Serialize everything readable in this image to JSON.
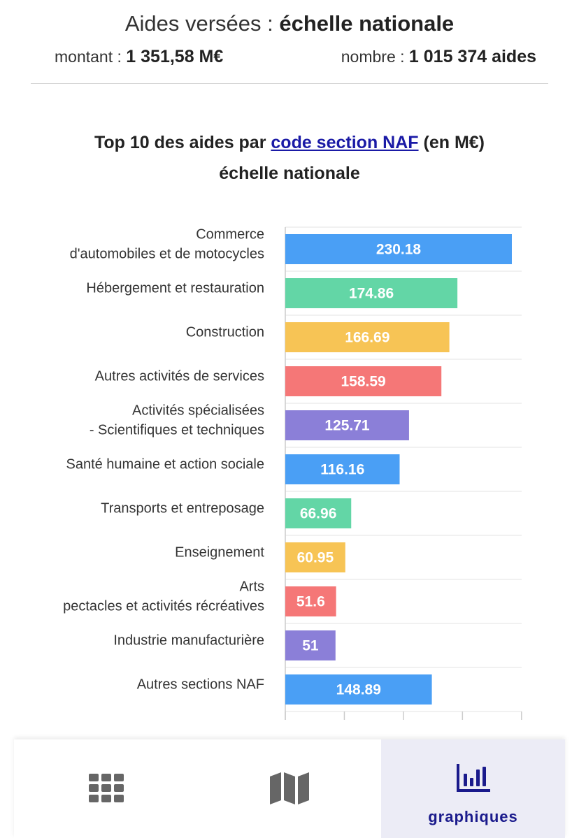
{
  "header": {
    "title_light": "Aides versées : ",
    "title_bold": "échelle nationale",
    "montant_label": "montant : ",
    "montant_value": "1 351,58 M€",
    "nombre_label": "nombre : ",
    "nombre_value": "1 015 374 aides"
  },
  "chart_title": {
    "prefix": "Top 10 des aides par ",
    "link": "code section NAF",
    "suffix": " (en M€)",
    "line2": "échelle nationale"
  },
  "chart_data": {
    "type": "bar",
    "orientation": "horizontal",
    "categories": [
      [
        "Commerce",
        "d'automobiles et de motocycles"
      ],
      [
        "Hébergement et restauration"
      ],
      [
        "Construction"
      ],
      [
        "Autres activités de services"
      ],
      [
        "Activités spécialisées",
        "- Scientifiques et techniques"
      ],
      [
        "Santé humaine et action sociale"
      ],
      [
        "Transports et entreposage"
      ],
      [
        "Enseignement"
      ],
      [
        "Arts",
        "pectacles et activités récréatives"
      ],
      [
        "Industrie manufacturière"
      ],
      [
        "Autres sections NAF"
      ]
    ],
    "values": [
      230.18,
      174.86,
      166.69,
      158.59,
      125.71,
      116.16,
      66.96,
      60.95,
      51.6,
      51,
      148.89
    ],
    "value_labels": [
      "230.18",
      "174.86",
      "166.69",
      "158.59",
      "125.71",
      "116.16",
      "66.96",
      "60.95",
      "51.6",
      "51",
      "148.89"
    ],
    "colors": [
      "#4a9ff5",
      "#63d6a6",
      "#f7c455",
      "#f57777",
      "#8b7fd8",
      "#4a9ff5",
      "#63d6a6",
      "#f7c455",
      "#f57777",
      "#8b7fd8",
      "#4a9ff5"
    ],
    "xlim": [
      0,
      240
    ],
    "x_ticks": [
      0,
      60,
      120,
      180,
      240
    ],
    "grid": true,
    "legend": "none"
  },
  "nav": {
    "items": [
      {
        "icon": "grid-icon",
        "label": ""
      },
      {
        "icon": "map-icon",
        "label": ""
      },
      {
        "icon": "bar-chart-icon",
        "label": "graphiques"
      }
    ],
    "active": "graphiques",
    "active_color": "#1a1a8c",
    "inactive_color": "#666666"
  }
}
